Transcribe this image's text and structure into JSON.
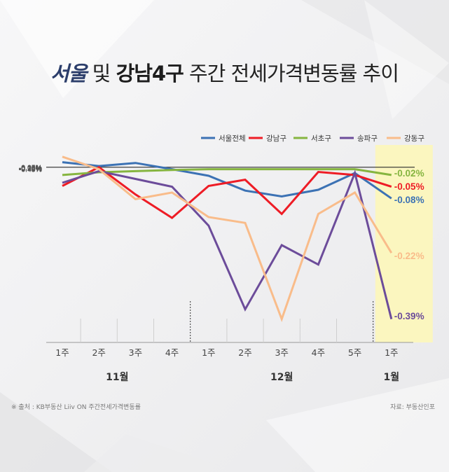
{
  "title": {
    "part1": "서울",
    "part2": " 및 ",
    "part3": "강남4구",
    "part4": " 주간 전세가격변동률 추이"
  },
  "footer": {
    "source_left": "※ 출처 : KB부동산 Liiv ON 주간전세가격변동률",
    "source_right": "자료: 부동산인포"
  },
  "colors": {
    "seoul": "#3c72b4",
    "gangnam": "#ee1c25",
    "seocho": "#86b540",
    "songpa": "#6c4c9a",
    "gangdong": "#f9bc8a",
    "highlight": "#fbf6bf"
  },
  "chart_data": {
    "type": "line",
    "x": [
      "1주",
      "2주",
      "3주",
      "4주",
      "1주",
      "2주",
      "3주",
      "4주",
      "5주",
      "1주"
    ],
    "months": [
      {
        "label": "11월",
        "from": 0,
        "to": 3
      },
      {
        "label": "12월",
        "from": 4,
        "to": 8
      },
      {
        "label": "1월",
        "from": 9,
        "to": 9
      }
    ],
    "yticks": [
      "0.05%",
      "0.00%",
      "-0.05%",
      "-0.10%",
      "-0.15%",
      "-0.20%",
      "-0.25%",
      "-0.30%",
      "-0.35%",
      "-0.40%",
      "-0.45%"
    ],
    "ylim": [
      -0.45,
      0.05
    ],
    "series": [
      {
        "name": "서울전체",
        "color_key": "seoul",
        "values": [
          0.013,
          0.003,
          0.011,
          -0.005,
          -0.022,
          -0.06,
          -0.075,
          -0.058,
          -0.015,
          -0.08
        ],
        "end_label": "-0.08%"
      },
      {
        "name": "강남구",
        "color_key": "gangnam",
        "values": [
          -0.048,
          0.0,
          -0.07,
          -0.13,
          -0.048,
          -0.032,
          -0.12,
          -0.012,
          -0.02,
          -0.05
        ],
        "end_label": "-0.05%"
      },
      {
        "name": "서초구",
        "color_key": "seocho",
        "values": [
          -0.02,
          -0.013,
          -0.01,
          -0.007,
          -0.005,
          -0.005,
          -0.005,
          -0.005,
          -0.005,
          -0.02
        ],
        "end_label": "-0.02%"
      },
      {
        "name": "송파구",
        "color_key": "songpa",
        "values": [
          -0.04,
          -0.01,
          -0.03,
          -0.05,
          -0.15,
          -0.365,
          -0.2,
          -0.25,
          -0.015,
          -0.39
        ],
        "end_label": "-0.39%"
      },
      {
        "name": "강동구",
        "color_key": "gangdong",
        "values": [
          0.027,
          -0.005,
          -0.082,
          -0.065,
          -0.128,
          -0.143,
          -0.39,
          -0.12,
          -0.065,
          -0.22
        ],
        "end_label": "-0.22%"
      }
    ],
    "legend_position": "top-right",
    "highlight_last": true
  }
}
